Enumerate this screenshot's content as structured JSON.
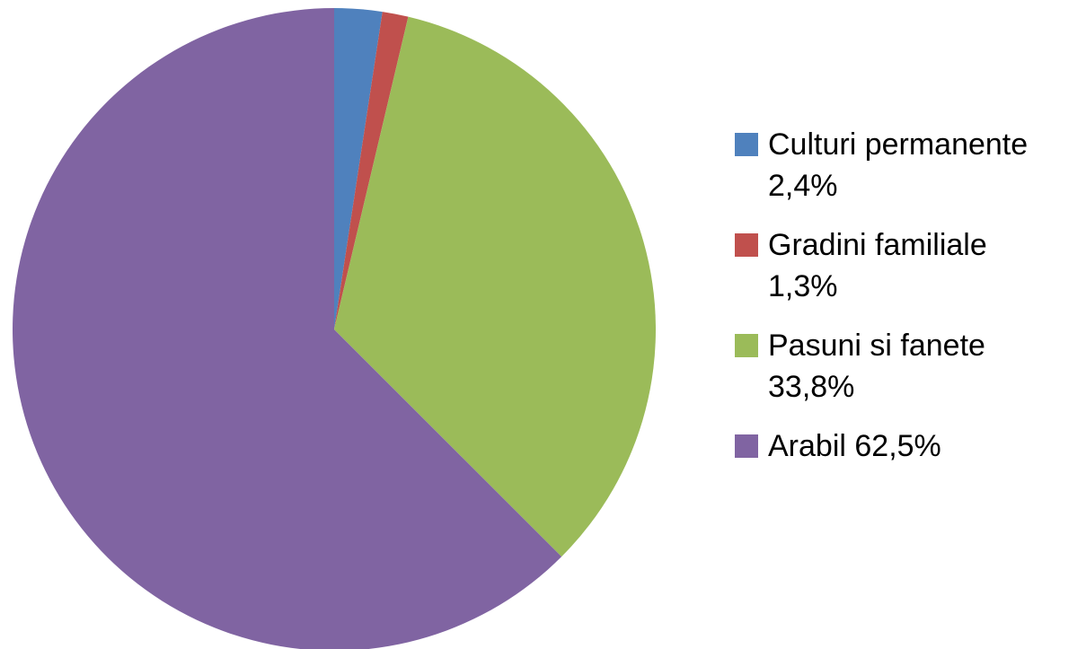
{
  "chart_data": {
    "type": "pie",
    "categories": [
      "Culturi permanente 2,4%",
      "Gradini familiale 1,3%",
      "Pasuni si fanete 33,8%",
      "Arabil 62,5%"
    ],
    "values": [
      2.4,
      1.3,
      33.8,
      62.5
    ],
    "colors": [
      "#4f81bd",
      "#c0504d",
      "#9bbb59",
      "#8064a2"
    ],
    "legend": "right"
  }
}
